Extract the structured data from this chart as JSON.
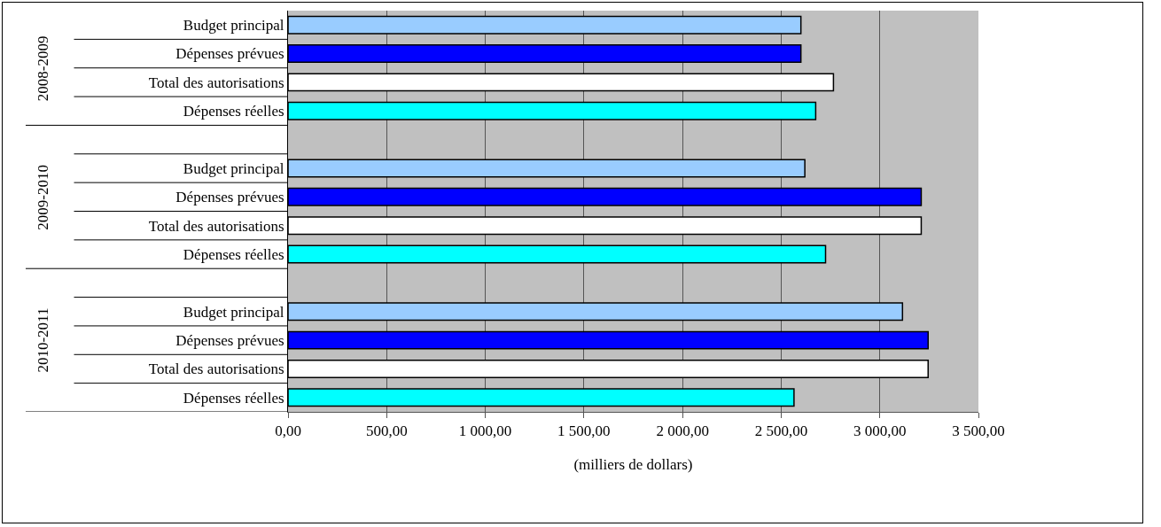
{
  "chart_data": {
    "type": "bar",
    "orientation": "horizontal",
    "categories": [
      "Budget principal",
      "Dépenses prévues",
      "Total des autorisations",
      "Dépenses réelles",
      null,
      "Budget principal",
      "Dépenses prévues",
      "Total des autorisations",
      "Dépenses réelles",
      null,
      "Budget principal",
      "Dépenses prévues",
      "Total des autorisations",
      "Dépenses réelles"
    ],
    "values": [
      2600,
      2600,
      2765,
      2675,
      null,
      2620,
      3210,
      3210,
      2725,
      null,
      3115,
      3245,
      3245,
      2565
    ],
    "colors": [
      "#99ccff",
      "#0000ff",
      "#ffffff",
      "#00ffff",
      null,
      "#99ccff",
      "#0000ff",
      "#ffffff",
      "#00ffff",
      null,
      "#99ccff",
      "#0000ff",
      "#ffffff",
      "#00ffff"
    ],
    "xlim": [
      0,
      3500
    ],
    "xticks": [
      {
        "value": 0,
        "label": "0,00"
      },
      {
        "value": 500,
        "label": "500,00"
      },
      {
        "value": 1000,
        "label": "1 000,00"
      },
      {
        "value": 1500,
        "label": "1 500,00"
      },
      {
        "value": 2000,
        "label": "2 000,00"
      },
      {
        "value": 2500,
        "label": "2 500,00"
      },
      {
        "value": 3000,
        "label": "3 000,00"
      },
      {
        "value": 3500,
        "label": "3 500,00"
      }
    ],
    "xlabel": "(milliers de dollars)",
    "annotations": [
      "2008-2009",
      "2009-2010",
      "2010-2011"
    ],
    "grid": "x"
  }
}
